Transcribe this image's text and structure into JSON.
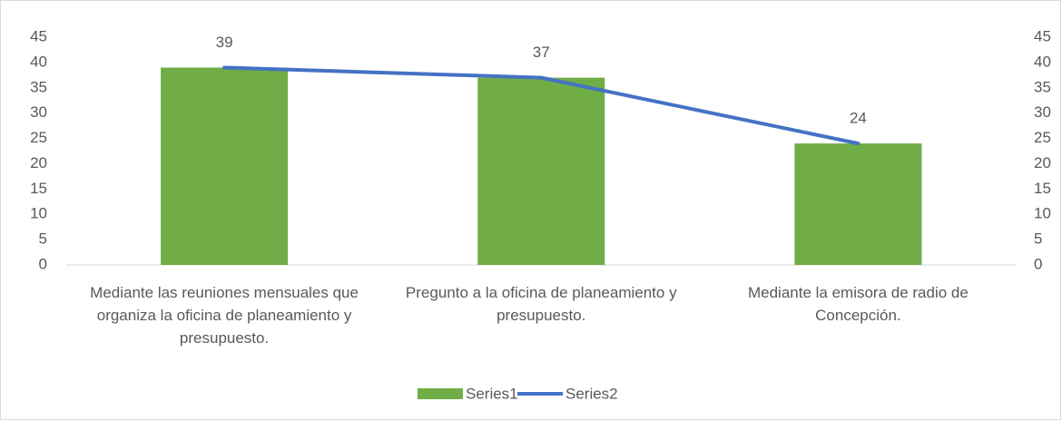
{
  "chart_data": {
    "type": "bar-line",
    "categories": [
      "Mediante las reuniones mensuales que organiza la oficina de planeamiento y presupuesto.",
      "Pregunto a la oficina de planeamiento y presupuesto.",
      "Mediante la emisora de radio de Concepción."
    ],
    "series": [
      {
        "name": "Series1",
        "type": "bar",
        "color": "#70ad47",
        "values": [
          39,
          37,
          24
        ]
      },
      {
        "name": "Series2",
        "type": "line",
        "color": "#4472c4",
        "axis": "y2",
        "values": [
          39,
          37,
          24
        ]
      }
    ],
    "ylim": [
      0,
      45
    ],
    "yticks": [
      0,
      5,
      10,
      15,
      20,
      25,
      30,
      35,
      40,
      45
    ],
    "y2lim": [
      0,
      45
    ],
    "y2ticks": [
      0,
      5,
      10,
      15,
      20,
      25,
      30,
      35,
      40,
      45
    ],
    "legend": "bottom",
    "grid": false
  }
}
